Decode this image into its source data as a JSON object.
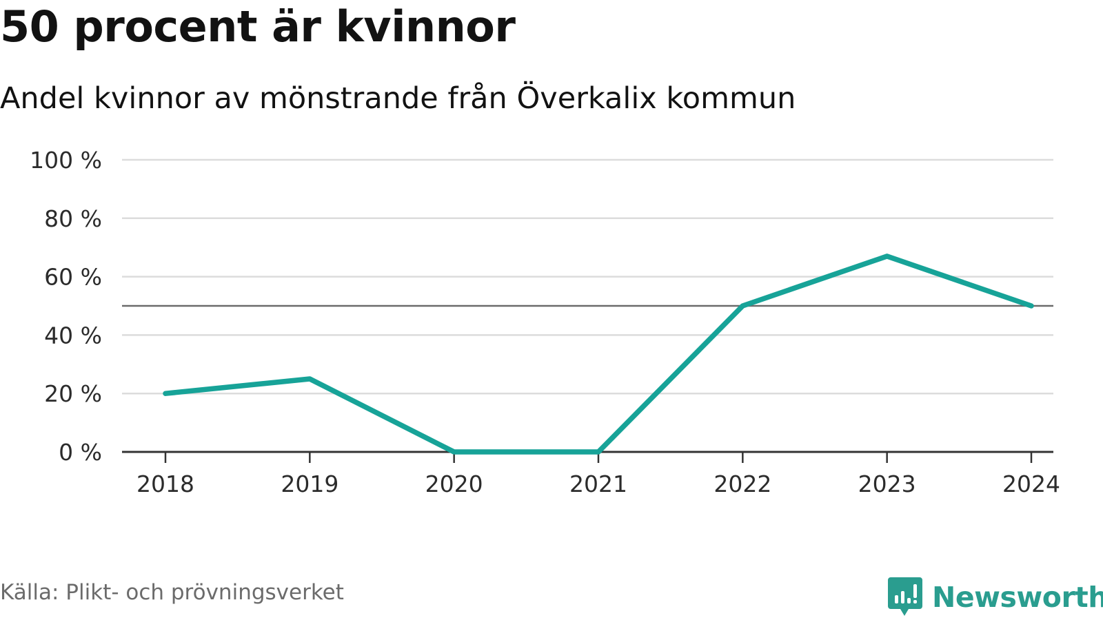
{
  "header": {
    "title": "50 procent är kvinnor",
    "subtitle": "Andel kvinnor av mönstrande från Överkalix kommun"
  },
  "footer": {
    "source": "Källa: Plikt- och prövningsverket",
    "brand": "Newsworthy",
    "brand_icon": "chart-speech-bubble-icon"
  },
  "colors": {
    "line": "#17a398",
    "reference": "#6a6a6a",
    "grid": "#dcdcdc",
    "axis": "#333333",
    "brand": "#2a9d8f"
  },
  "chart_data": {
    "type": "line",
    "categories": [
      "2018",
      "2019",
      "2020",
      "2021",
      "2022",
      "2023",
      "2024"
    ],
    "series": [
      {
        "values": [
          20,
          25,
          0,
          0,
          50,
          67,
          50
        ]
      }
    ],
    "reference_line": 50,
    "y_ticks": [
      "0 %",
      "20 %",
      "40 %",
      "60 %",
      "80 %",
      "100 %"
    ],
    "y_tick_values": [
      0,
      20,
      40,
      60,
      80,
      100
    ],
    "ylim": [
      0,
      100
    ],
    "grid": true,
    "title": "50 procent är kvinnor",
    "subtitle": "Andel kvinnor av mönstrande från Överkalix kommun",
    "xlabel": "",
    "ylabel": ""
  }
}
